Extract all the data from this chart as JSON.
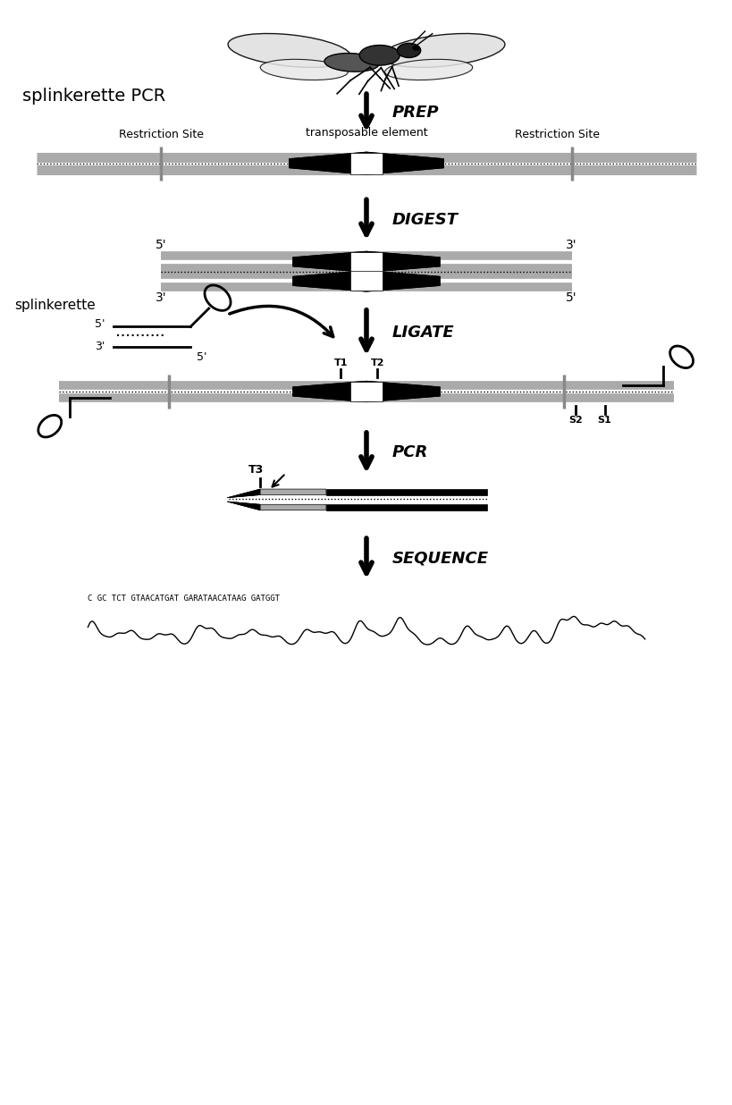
{
  "bg_color": "#ffffff",
  "title": "splinkerette PCR",
  "restriction_site_label": "Restriction Site",
  "te_label": "transposable element",
  "splinkerette_label": "splinkerette",
  "fig_width": 8.2,
  "fig_height": 12.36,
  "gray_color": "#aaaaaa",
  "steps": [
    "PREP",
    "DIGEST",
    "LIGATE",
    "PCR",
    "SEQUENCE"
  ],
  "seq_text": "C GC TCT GTAACATGAT GARATAACATAAG GATGGT"
}
